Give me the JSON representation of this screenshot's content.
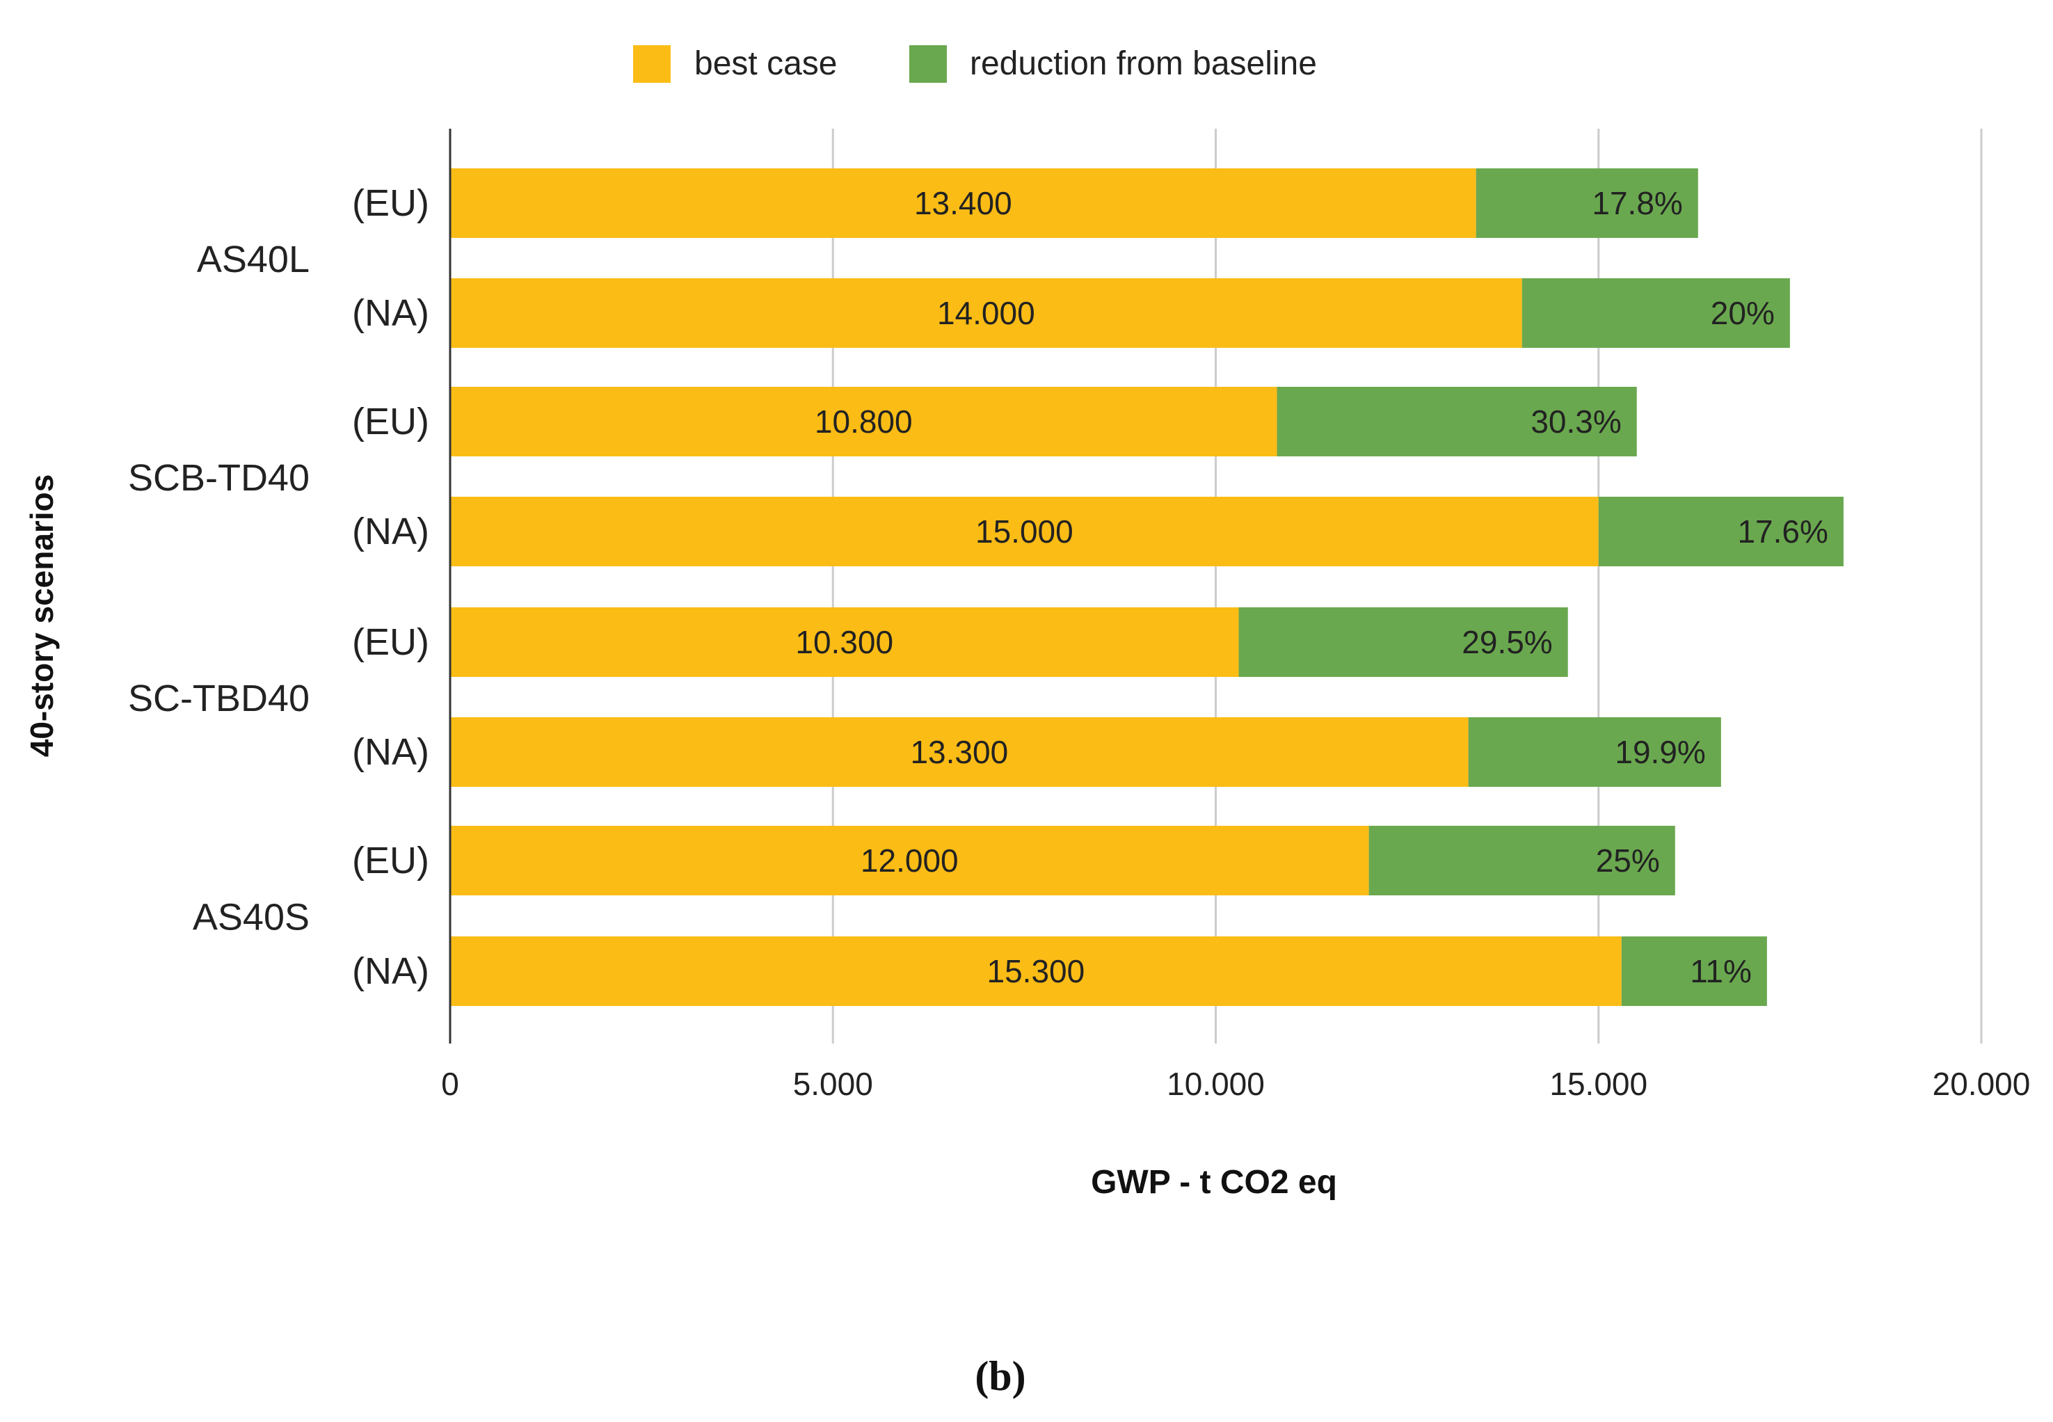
{
  "chart_data": {
    "type": "bar",
    "orientation": "horizontal",
    "stacked": true,
    "xlabel": "GWP - t CO2 eq",
    "ylabel": "40-story scenarios",
    "xlim": [
      0,
      20000
    ],
    "x_ticks": [
      0,
      5000,
      10000,
      15000,
      20000
    ],
    "x_tick_labels": [
      "0",
      "5.000",
      "10.000",
      "15.000",
      "20.000"
    ],
    "grid": true,
    "legend_position": "top-center",
    "colors": {
      "best_case": "#FBBC15",
      "reduction": "#6AA84F"
    },
    "series": [
      {
        "name": "best case",
        "key": "best_case"
      },
      {
        "name": "reduction from baseline",
        "key": "reduction"
      }
    ],
    "groups": [
      {
        "name": "AS40L",
        "bars": [
          {
            "region": "(EU)",
            "best": 13400,
            "best_label": "13.400",
            "reduction": 2900,
            "reduction_label": "17.8%"
          },
          {
            "region": "(NA)",
            "best": 14000,
            "best_label": "14.000",
            "reduction": 3500,
            "reduction_label": "20%"
          }
        ]
      },
      {
        "name": "SCB-TD40",
        "bars": [
          {
            "region": "(EU)",
            "best": 10800,
            "best_label": "10.800",
            "reduction": 4700,
            "reduction_label": "30.3%"
          },
          {
            "region": "(NA)",
            "best": 15000,
            "best_label": "15.000",
            "reduction": 3200,
            "reduction_label": "17.6%"
          }
        ]
      },
      {
        "name": "SC-TBD40",
        "bars": [
          {
            "region": "(EU)",
            "best": 10300,
            "best_label": "10.300",
            "reduction": 4300,
            "reduction_label": "29.5%"
          },
          {
            "region": "(NA)",
            "best": 13300,
            "best_label": "13.300",
            "reduction": 3300,
            "reduction_label": "19.9%"
          }
        ]
      },
      {
        "name": "AS40S",
        "bars": [
          {
            "region": "(EU)",
            "best": 12000,
            "best_label": "12.000",
            "reduction": 4000,
            "reduction_label": "25%"
          },
          {
            "region": "(NA)",
            "best": 15300,
            "best_label": "15.300",
            "reduction": 1900,
            "reduction_label": "11%"
          }
        ]
      }
    ]
  },
  "caption": "(b)"
}
